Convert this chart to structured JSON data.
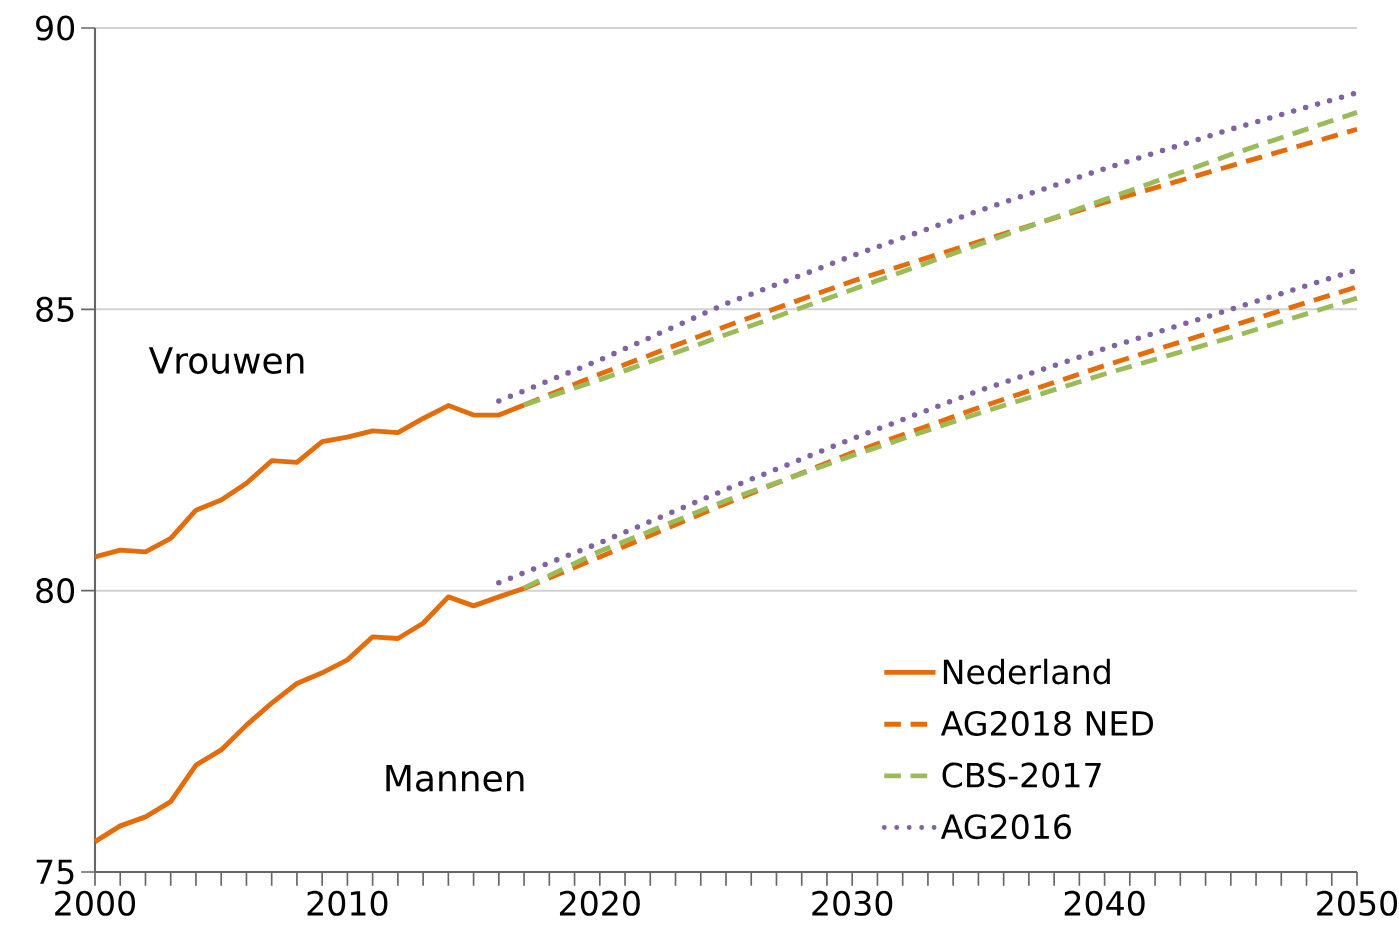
{
  "chart_data": {
    "type": "line",
    "series": [
      {
        "name": "Nederland",
        "color": "#e46c0a",
        "line_style": "solid",
        "x": [
          2000,
          2001,
          2002,
          2003,
          2004,
          2005,
          2006,
          2007,
          2008,
          2009,
          2010,
          2011,
          2012,
          2013,
          2014,
          2015,
          2016,
          2017
        ],
        "values": [
          80.6,
          80.72,
          80.69,
          80.93,
          81.43,
          81.61,
          81.91,
          82.31,
          82.28,
          82.65,
          82.73,
          82.84,
          82.81,
          83.06,
          83.29,
          83.12,
          83.12,
          83.3
        ]
      },
      {
        "color": "#e46c0a",
        "line_style": "solid",
        "x": [
          2000,
          2001,
          2002,
          2003,
          2004,
          2005,
          2006,
          2007,
          2008,
          2009,
          2010,
          2011,
          2012,
          2013,
          2014,
          2015,
          2016,
          2017
        ],
        "values": [
          75.54,
          75.82,
          75.98,
          76.25,
          76.9,
          77.17,
          77.61,
          78.0,
          78.35,
          78.54,
          78.77,
          79.18,
          79.15,
          79.42,
          79.89,
          79.73,
          79.89,
          80.04
        ]
      },
      {
        "name": "AG2018 NED",
        "color": "#e46c0a",
        "line_style": "dashed",
        "x": [
          2017,
          2020,
          2025,
          2030,
          2035,
          2040,
          2045,
          2050
        ],
        "values": [
          83.3,
          83.85,
          84.7,
          85.5,
          86.2,
          86.9,
          87.55,
          88.2
        ]
      },
      {
        "color": "#e46c0a",
        "line_style": "dashed",
        "x": [
          2017,
          2020,
          2025,
          2030,
          2035,
          2040,
          2045,
          2050
        ],
        "values": [
          80.04,
          80.6,
          81.55,
          82.45,
          83.25,
          84.0,
          84.7,
          85.4
        ]
      },
      {
        "name": "CBS-2017",
        "color": "#9bbb59",
        "line_style": "dashed",
        "x": [
          2017,
          2020,
          2025,
          2030,
          2035,
          2040,
          2045,
          2050
        ],
        "values": [
          83.3,
          83.75,
          84.55,
          85.35,
          86.15,
          86.95,
          87.75,
          88.5
        ]
      },
      {
        "color": "#9bbb59",
        "line_style": "dashed",
        "x": [
          2017,
          2020,
          2025,
          2030,
          2035,
          2040,
          2045,
          2050
        ],
        "values": [
          80.05,
          80.7,
          81.6,
          82.4,
          83.15,
          83.85,
          84.5,
          85.2
        ]
      },
      {
        "name": "AG2016",
        "color": "#8064a2",
        "line_style": "dotted",
        "x": [
          2016,
          2020,
          2025,
          2030,
          2035,
          2040,
          2045,
          2050
        ],
        "values": [
          83.37,
          84.1,
          85.1,
          85.95,
          86.75,
          87.5,
          88.2,
          88.85
        ]
      },
      {
        "color": "#8064a2",
        "line_style": "dotted",
        "x": [
          2016,
          2020,
          2025,
          2030,
          2035,
          2040,
          2045,
          2050
        ],
        "values": [
          80.14,
          80.85,
          81.8,
          82.7,
          83.55,
          84.3,
          85.0,
          85.7
        ]
      }
    ],
    "annotations": [
      "Vrouwen",
      "Mannen"
    ],
    "xlim": [
      2000,
      2050
    ],
    "xticks": [
      2000,
      {
        "value": 2001,
        "label": null
      },
      {
        "value": 2002,
        "label": null
      },
      {
        "value": 2003,
        "label": null
      },
      {
        "value": 2004,
        "label": null
      },
      {
        "value": 2005,
        "label": null
      },
      {
        "value": 2006,
        "label": null
      },
      {
        "value": 2007,
        "label": null
      },
      {
        "value": 2008,
        "label": null
      },
      {
        "value": 2009,
        "label": null
      },
      2010,
      {
        "value": 2011,
        "label": null
      },
      {
        "value": 2012,
        "label": null
      },
      {
        "value": 2013,
        "label": null
      },
      {
        "value": 2014,
        "label": null
      },
      {
        "value": 2015,
        "label": null
      },
      {
        "value": 2016,
        "label": null
      },
      {
        "value": 2017,
        "label": null
      },
      {
        "value": 2018,
        "label": null
      },
      {
        "value": 2019,
        "label": null
      },
      2020,
      {
        "value": 2021,
        "label": null
      },
      {
        "value": 2022,
        "label": null
      },
      {
        "value": 2023,
        "label": null
      },
      {
        "value": 2024,
        "label": null
      },
      {
        "value": 2025,
        "label": null
      },
      {
        "value": 2026,
        "label": null
      },
      {
        "value": 2027,
        "label": null
      },
      {
        "value": 2028,
        "label": null
      },
      {
        "value": 2029,
        "label": null
      },
      2030,
      {
        "value": 2031,
        "label": null
      },
      {
        "value": 2032,
        "label": null
      },
      {
        "value": 2033,
        "label": null
      },
      {
        "value": 2034,
        "label": null
      },
      {
        "value": 2035,
        "label": null
      },
      {
        "value": 2036,
        "label": null
      },
      {
        "value": 2037,
        "label": null
      },
      {
        "value": 2038,
        "label": null
      },
      {
        "value": 2039,
        "label": null
      },
      2040,
      {
        "value": 2041,
        "label": null
      },
      {
        "value": 2042,
        "label": null
      },
      {
        "value": 2043,
        "label": null
      },
      {
        "value": 2044,
        "label": null
      },
      {
        "value": 2045,
        "label": null
      },
      {
        "value": 2046,
        "label": null
      },
      {
        "value": 2047,
        "label": null
      },
      {
        "value": 2048,
        "label": null
      },
      {
        "value": 2049,
        "label": null
      },
      2050
    ],
    "ylim": [
      75,
      90
    ],
    "yticks": [
      75,
      80,
      85,
      90
    ],
    "grid": "y",
    "legend": "bottom right",
    "marker": "none"
  }
}
